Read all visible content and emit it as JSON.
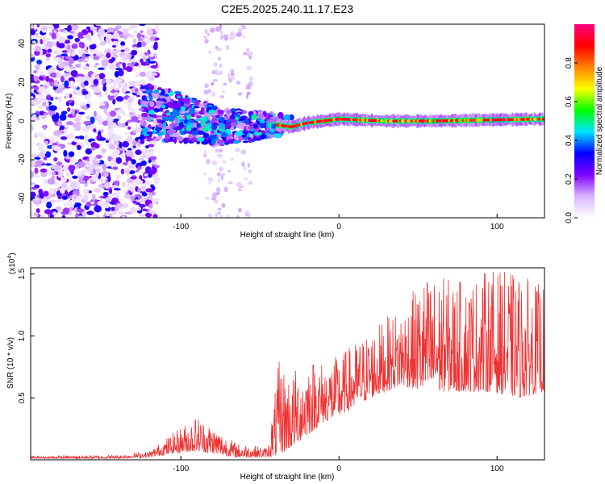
{
  "chart_data": [
    {
      "type": "heatmap",
      "title": "C2E5.2025.240.11.17.E23",
      "xlabel": "Height of straight line (km)",
      "ylabel": "Frequency (Hz)",
      "xlim": [
        -195,
        130
      ],
      "ylim": [
        -50,
        50
      ],
      "xticks": [
        -100,
        0,
        100
      ],
      "yticks": [
        -40,
        -20,
        0,
        20,
        40
      ],
      "colorbar": {
        "label": "Normalized spectral amplitude",
        "range": [
          0,
          1
        ],
        "ticks": [
          0.0,
          0.2,
          0.4,
          0.6,
          0.8
        ],
        "colors": [
          "#ffffff",
          "#d9b3ff",
          "#8000ff",
          "#0000ff",
          "#00e5ff",
          "#00ff00",
          "#ffff00",
          "#ff8000",
          "#ff0000",
          "#ff0080"
        ]
      },
      "description_of_field": {
        "noise_region_km": [
          -195,
          -120
        ],
        "transition_region_km": [
          -125,
          -40
        ],
        "ridge_frequency_hz": [
          {
            "x": -120,
            "y": 4
          },
          {
            "x": -100,
            "y": 2
          },
          {
            "x": -80,
            "y": -2
          },
          {
            "x": -60,
            "y": -3
          },
          {
            "x": -40,
            "y": -2
          },
          {
            "x": -30,
            "y": -3
          },
          {
            "x": -20,
            "y": -1
          },
          {
            "x": 0,
            "y": 1
          },
          {
            "x": 30,
            "y": 0
          },
          {
            "x": 60,
            "y": 0
          },
          {
            "x": 90,
            "y": 0.5
          },
          {
            "x": 130,
            "y": 1
          }
        ]
      }
    },
    {
      "type": "line",
      "title": "",
      "xlabel": "Height of straight line (km)",
      "ylabel": "SNR (10 * v/v)",
      "multiplier_label": "(x10",
      "multiplier_exp": "4",
      "multiplier_close": ")",
      "xlim": [
        -195,
        130
      ],
      "ylim": [
        0,
        1.55
      ],
      "xticks": [
        -100,
        0,
        100
      ],
      "yticks": [
        0.5,
        1.0,
        1.5
      ],
      "ytick_labels": [
        "0.5",
        "1.0",
        "1.5"
      ],
      "series": [
        {
          "name": "SNR",
          "color": "#ee3333",
          "envelope": [
            {
              "x": -195,
              "base": 0.01,
              "peak": 0.03
            },
            {
              "x": -140,
              "base": 0.01,
              "peak": 0.04
            },
            {
              "x": -120,
              "base": 0.02,
              "peak": 0.07
            },
            {
              "x": -105,
              "base": 0.05,
              "peak": 0.22
            },
            {
              "x": -90,
              "base": 0.07,
              "peak": 0.36
            },
            {
              "x": -80,
              "base": 0.05,
              "peak": 0.28
            },
            {
              "x": -65,
              "base": 0.02,
              "peak": 0.14
            },
            {
              "x": -45,
              "base": 0.02,
              "peak": 0.1
            },
            {
              "x": -38,
              "base": 0.04,
              "peak": 0.8
            },
            {
              "x": -30,
              "base": 0.1,
              "peak": 0.7
            },
            {
              "x": -20,
              "base": 0.2,
              "peak": 0.85
            },
            {
              "x": -10,
              "base": 0.3,
              "peak": 0.8
            },
            {
              "x": 0,
              "base": 0.35,
              "peak": 0.85
            },
            {
              "x": 20,
              "base": 0.5,
              "peak": 1.05
            },
            {
              "x": 40,
              "base": 0.6,
              "peak": 1.25
            },
            {
              "x": 55,
              "base": 0.55,
              "peak": 1.5
            },
            {
              "x": 80,
              "base": 0.55,
              "peak": 1.45
            },
            {
              "x": 95,
              "base": 0.55,
              "peak": 1.55
            },
            {
              "x": 115,
              "base": 0.5,
              "peak": 1.5
            },
            {
              "x": 130,
              "base": 0.55,
              "peak": 1.4
            }
          ]
        }
      ]
    }
  ]
}
